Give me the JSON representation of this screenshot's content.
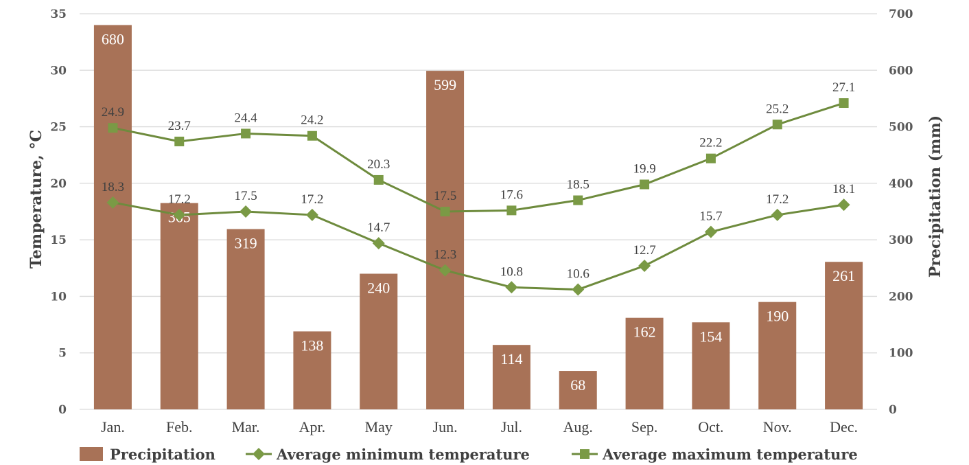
{
  "colors": {
    "bar": "#A87257",
    "line": "#6E8B3D",
    "marker": "#7A9A45",
    "grid": "#D9D9D9"
  },
  "chart_data": {
    "type": "bar",
    "categories": [
      "Jan.",
      "Feb.",
      "Mar.",
      "Apr.",
      "May",
      "Jun.",
      "Jul.",
      "Aug.",
      "Sep.",
      "Oct.",
      "Nov.",
      "Dec."
    ],
    "series": [
      {
        "name": "Precipitation",
        "type": "bar",
        "axis": "right",
        "values": [
          680,
          365,
          319,
          138,
          240,
          599,
          114,
          68,
          162,
          154,
          190,
          261
        ]
      },
      {
        "name": "Average minimum temperature",
        "type": "line",
        "axis": "left",
        "marker": "diamond",
        "values": [
          18.3,
          17.2,
          17.5,
          17.2,
          14.7,
          12.3,
          10.8,
          10.6,
          12.7,
          15.7,
          17.2,
          18.1
        ]
      },
      {
        "name": "Average maximum temperature",
        "type": "line",
        "axis": "left",
        "marker": "square",
        "values": [
          24.9,
          23.7,
          24.4,
          24.2,
          20.3,
          17.5,
          17.6,
          18.5,
          19.9,
          22.2,
          25.2,
          27.1
        ]
      }
    ],
    "ylabel": "Temperature, °C",
    "y2label": "Precipitation (mm)",
    "ylim": [
      0,
      35
    ],
    "y2lim": [
      0,
      700
    ],
    "yticks": [
      "0",
      "5",
      "10",
      "15",
      "20",
      "25",
      "30",
      "35"
    ],
    "y2ticks": [
      "0",
      "100",
      "200",
      "300",
      "400",
      "500",
      "600",
      "700"
    ],
    "grid": true,
    "legend": "bottom"
  }
}
